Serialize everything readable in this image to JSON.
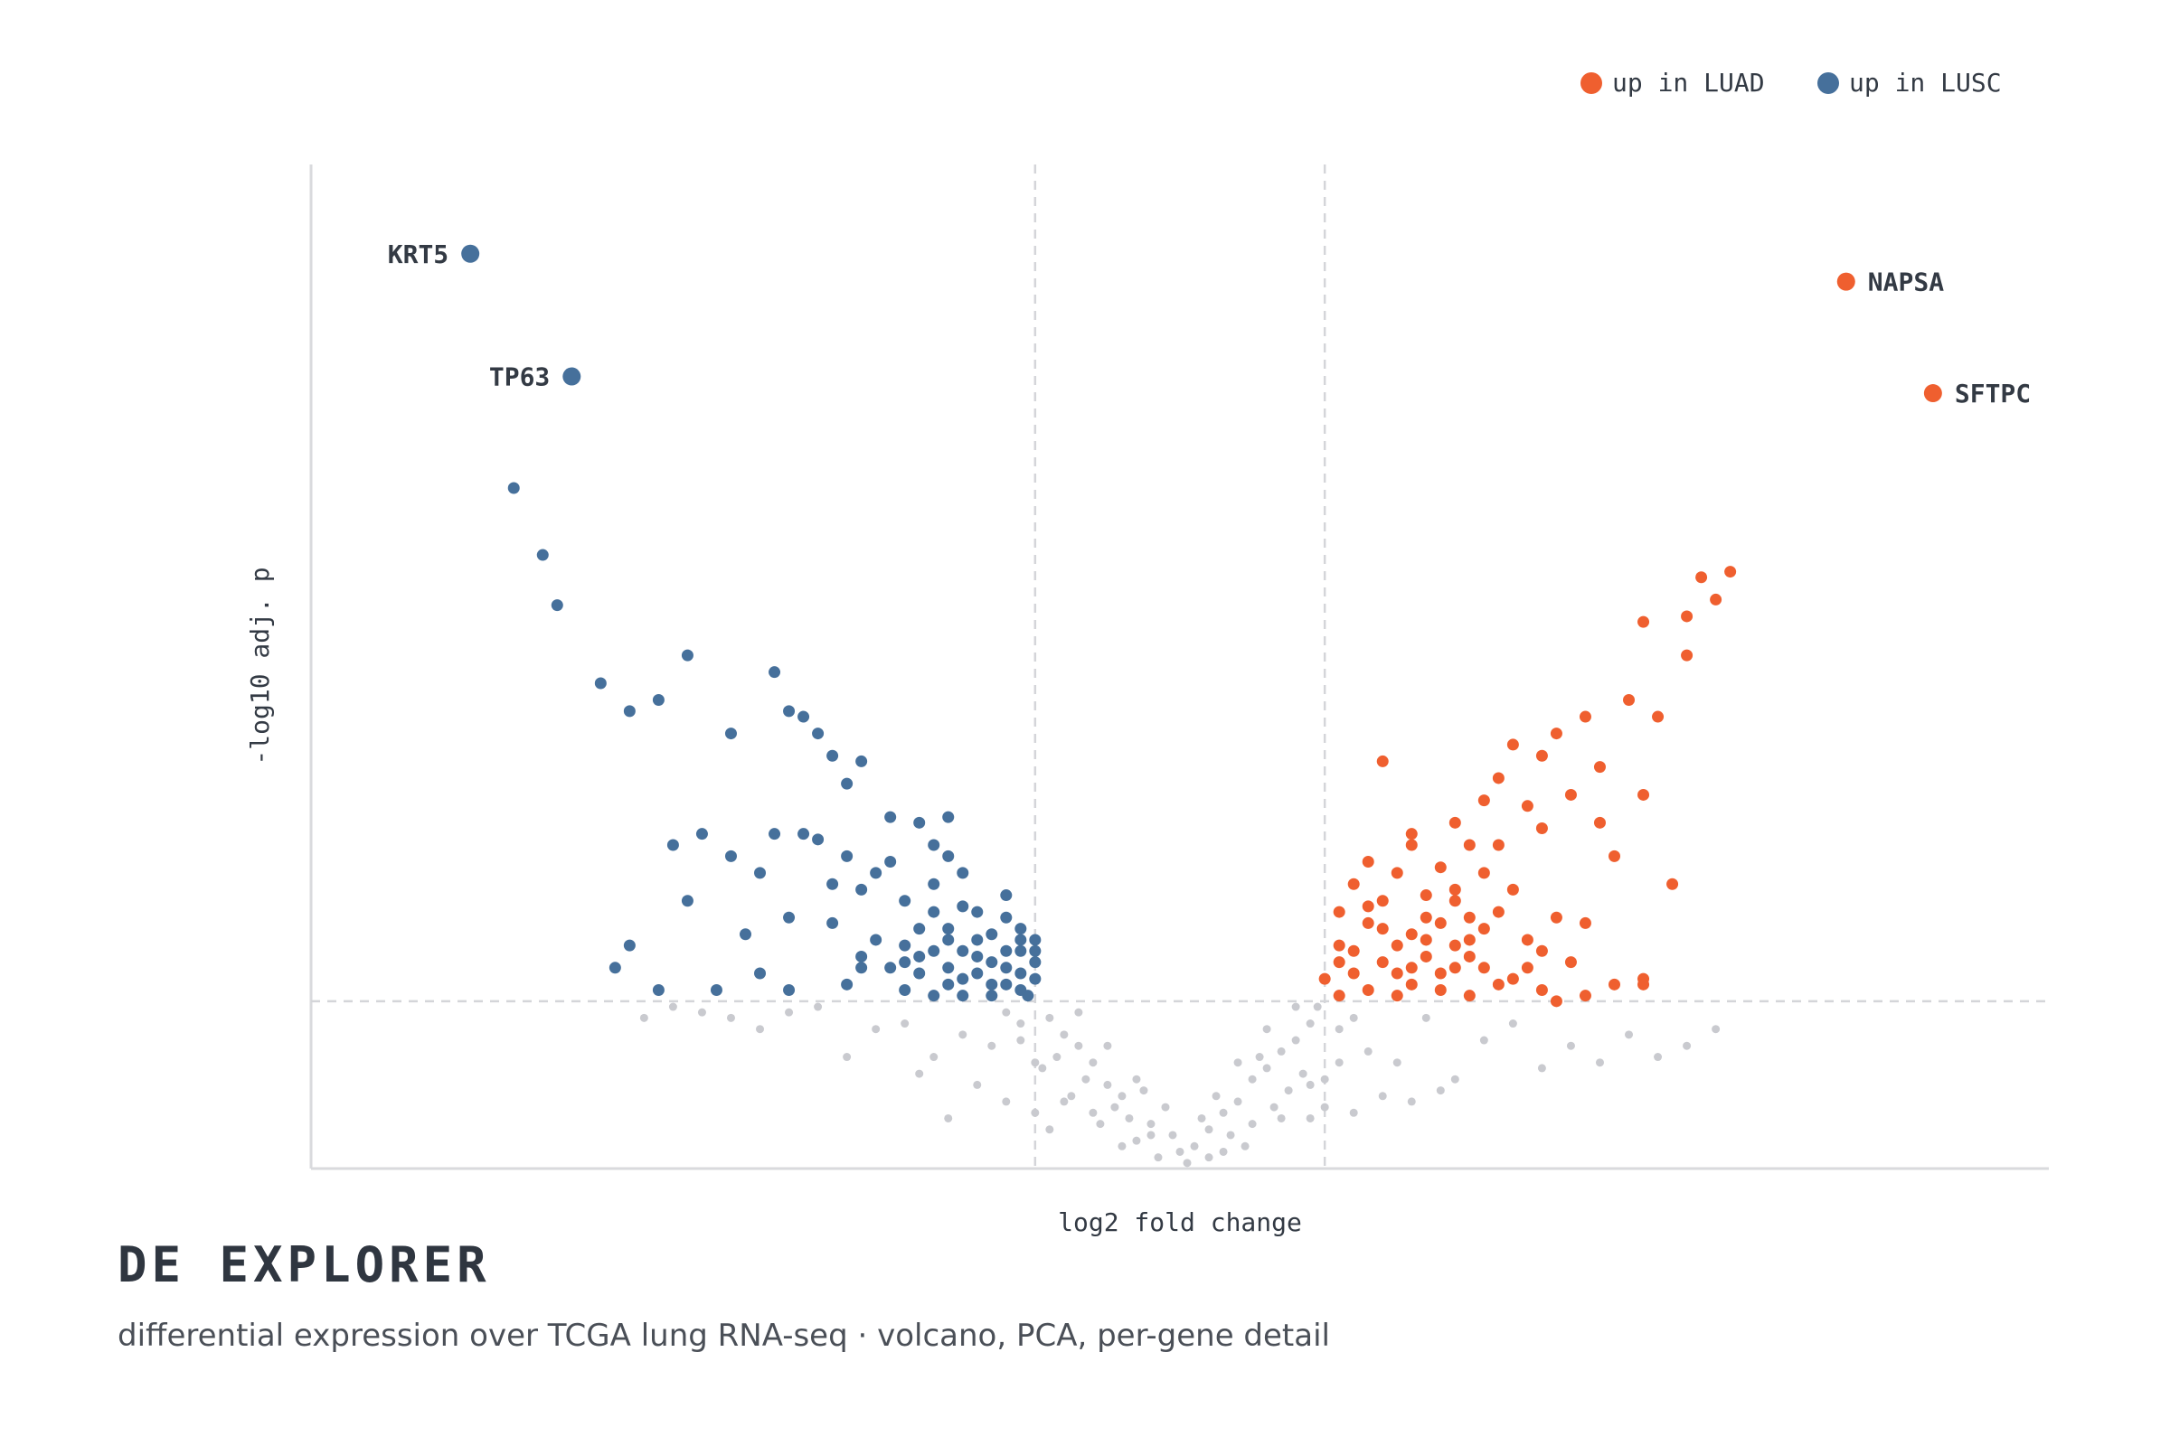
{
  "app": {
    "title": "DE EXPLORER",
    "subtitle": "differential expression over TCGA lung RNA-seq · volcano, PCA, per-gene detail"
  },
  "legend": [
    {
      "label": "up in LUAD",
      "color": "#ef5f2f",
      "placement": "top-right"
    },
    {
      "label": "up in LUSC",
      "color": "#46709b",
      "placement": "top-right"
    }
  ],
  "colors": {
    "up_luad": "#ef5f2f",
    "up_lusc": "#46709b",
    "not_significant": "#c9cacf",
    "threshold": "#d4d5d9",
    "axis": "#d9dadd"
  },
  "chart_data": {
    "type": "scatter",
    "subtype": "volcano",
    "xlabel": "log2 fold change",
    "ylabel": "-log10 adj. p",
    "xlim": [
      -6,
      6
    ],
    "ylim": [
      0,
      18
    ],
    "tick_labels_shown": false,
    "grid": false,
    "thresholds": {
      "log2fc": [
        -1,
        1
      ],
      "neg_log10_p": 3
    },
    "labeled_genes": [
      {
        "gene": "KRT5",
        "x": -4.9,
        "y": 16.4,
        "group": "up in LUSC"
      },
      {
        "gene": "TP63",
        "x": -4.2,
        "y": 14.2,
        "group": "up in LUSC"
      },
      {
        "gene": "NAPSA",
        "x": 4.6,
        "y": 15.9,
        "group": "up in LUAD"
      },
      {
        "gene": "SFTPC",
        "x": 5.2,
        "y": 13.9,
        "group": "up in LUAD"
      }
    ],
    "series": [
      {
        "name": "up in LUSC",
        "points": [
          [
            -4.6,
            12.2
          ],
          [
            -4.4,
            11.0
          ],
          [
            -4.3,
            10.1
          ],
          [
            -4.0,
            8.7
          ],
          [
            -3.8,
            8.2
          ],
          [
            -3.6,
            8.4
          ],
          [
            -3.4,
            9.2
          ],
          [
            -3.1,
            7.8
          ],
          [
            -2.8,
            8.9
          ],
          [
            -2.7,
            8.2
          ],
          [
            -2.5,
            7.8
          ],
          [
            -2.6,
            8.1
          ],
          [
            -2.4,
            7.4
          ],
          [
            -2.3,
            6.9
          ],
          [
            -2.2,
            7.3
          ],
          [
            -2.0,
            6.3
          ],
          [
            -1.8,
            6.2
          ],
          [
            -1.7,
            5.8
          ],
          [
            -1.6,
            6.3
          ],
          [
            -1.6,
            5.6
          ],
          [
            -3.5,
            5.8
          ],
          [
            -3.4,
            4.8
          ],
          [
            -3.0,
            4.2
          ],
          [
            -2.9,
            5.3
          ],
          [
            -2.8,
            6.0
          ],
          [
            -2.6,
            6.0
          ],
          [
            -2.5,
            5.9
          ],
          [
            -2.3,
            5.6
          ],
          [
            -2.2,
            5.0
          ],
          [
            -2.0,
            5.5
          ],
          [
            -1.9,
            4.8
          ],
          [
            -1.7,
            5.1
          ],
          [
            -1.6,
            4.3
          ],
          [
            -1.5,
            4.7
          ],
          [
            -1.4,
            4.6
          ],
          [
            -1.3,
            4.2
          ],
          [
            -1.2,
            4.5
          ],
          [
            -1.1,
            4.3
          ],
          [
            -1.0,
            4.1
          ],
          [
            -2.7,
            4.5
          ],
          [
            -2.4,
            4.4
          ],
          [
            -2.2,
            3.8
          ],
          [
            -2.1,
            4.1
          ],
          [
            -1.9,
            4.0
          ],
          [
            -1.8,
            3.5
          ],
          [
            -1.7,
            3.9
          ],
          [
            -1.6,
            3.6
          ],
          [
            -1.5,
            3.4
          ],
          [
            -1.4,
            3.8
          ],
          [
            -1.3,
            3.3
          ],
          [
            -1.2,
            3.9
          ],
          [
            -1.1,
            3.5
          ],
          [
            -1.05,
            3.1
          ],
          [
            -1.5,
            3.1
          ],
          [
            -1.7,
            3.1
          ],
          [
            -1.9,
            3.2
          ],
          [
            -2.0,
            3.6
          ],
          [
            -1.3,
            3.7
          ],
          [
            -1.1,
            3.9
          ],
          [
            -1.0,
            3.4
          ],
          [
            -3.8,
            4.0
          ],
          [
            -3.9,
            3.6
          ],
          [
            -3.6,
            3.2
          ],
          [
            -3.2,
            3.2
          ],
          [
            -2.9,
            3.5
          ],
          [
            -2.7,
            3.2
          ],
          [
            -2.3,
            3.3
          ],
          [
            -2.2,
            3.6
          ],
          [
            -3.3,
            6.0
          ],
          [
            -3.1,
            5.6
          ],
          [
            -1.6,
            4.1
          ],
          [
            -1.8,
            4.3
          ],
          [
            -1.4,
            4.1
          ],
          [
            -1.2,
            3.6
          ],
          [
            -1.0,
            3.7
          ],
          [
            -1.3,
            3.1
          ],
          [
            -1.5,
            3.9
          ],
          [
            -2.1,
            5.3
          ],
          [
            -2.4,
            5.1
          ],
          [
            -1.7,
            4.6
          ],
          [
            -1.5,
            5.3
          ],
          [
            -1.2,
            4.9
          ],
          [
            -1.1,
            3.2
          ],
          [
            -1.9,
            3.7
          ],
          [
            -1.6,
            3.3
          ],
          [
            -1.4,
            3.5
          ],
          [
            -1.8,
            3.8
          ],
          [
            -1.2,
            3.3
          ],
          [
            -1.0,
            3.9
          ],
          [
            -1.1,
            4.1
          ]
        ]
      },
      {
        "name": "up in LUAD",
        "points": [
          [
            3.8,
            10.7
          ],
          [
            3.7,
            10.2
          ],
          [
            3.6,
            10.6
          ],
          [
            3.5,
            9.9
          ],
          [
            3.5,
            9.2
          ],
          [
            3.2,
            9.8
          ],
          [
            3.1,
            8.4
          ],
          [
            3.3,
            8.1
          ],
          [
            2.8,
            8.1
          ],
          [
            2.9,
            7.2
          ],
          [
            2.7,
            6.7
          ],
          [
            2.3,
            7.6
          ],
          [
            2.6,
            7.8
          ],
          [
            2.5,
            7.4
          ],
          [
            2.4,
            6.5
          ],
          [
            2.2,
            7.0
          ],
          [
            2.1,
            6.6
          ],
          [
            2.5,
            6.1
          ],
          [
            3.0,
            5.6
          ],
          [
            3.2,
            6.7
          ],
          [
            1.4,
            7.3
          ],
          [
            1.6,
            5.8
          ],
          [
            1.8,
            5.4
          ],
          [
            2.0,
            5.8
          ],
          [
            2.1,
            5.3
          ],
          [
            1.9,
            5.0
          ],
          [
            1.5,
            5.3
          ],
          [
            1.4,
            4.8
          ],
          [
            1.7,
            4.5
          ],
          [
            1.2,
            5.1
          ],
          [
            1.1,
            4.6
          ],
          [
            1.3,
            4.4
          ],
          [
            1.6,
            4.2
          ],
          [
            1.8,
            4.4
          ],
          [
            1.9,
            4.8
          ],
          [
            2.0,
            4.1
          ],
          [
            2.2,
            4.6
          ],
          [
            2.3,
            5.0
          ],
          [
            2.4,
            4.1
          ],
          [
            2.6,
            4.5
          ],
          [
            1.1,
            4.0
          ],
          [
            1.2,
            3.9
          ],
          [
            1.4,
            3.7
          ],
          [
            1.5,
            4.0
          ],
          [
            1.7,
            3.8
          ],
          [
            1.8,
            3.5
          ],
          [
            2.0,
            3.8
          ],
          [
            2.1,
            3.6
          ],
          [
            2.3,
            3.4
          ],
          [
            2.5,
            3.9
          ],
          [
            1.0,
            3.4
          ],
          [
            1.1,
            3.1
          ],
          [
            1.3,
            3.2
          ],
          [
            1.5,
            3.1
          ],
          [
            1.6,
            3.3
          ],
          [
            1.8,
            3.2
          ],
          [
            2.0,
            3.1
          ],
          [
            2.2,
            3.3
          ],
          [
            2.5,
            3.2
          ],
          [
            2.6,
            3.0
          ],
          [
            1.3,
            5.5
          ],
          [
            1.6,
            6.0
          ],
          [
            1.9,
            6.2
          ],
          [
            2.2,
            5.8
          ],
          [
            1.7,
            4.9
          ],
          [
            1.4,
            4.3
          ],
          [
            1.2,
            3.5
          ],
          [
            1.9,
            3.6
          ],
          [
            2.8,
            3.1
          ],
          [
            3.2,
            3.4
          ],
          [
            3.0,
            3.3
          ],
          [
            2.7,
            3.7
          ],
          [
            2.8,
            4.4
          ],
          [
            3.2,
            3.3
          ],
          [
            2.1,
            4.3
          ],
          [
            1.9,
            4.0
          ],
          [
            1.5,
            3.5
          ],
          [
            1.1,
            3.7
          ],
          [
            2.9,
            6.2
          ],
          [
            3.4,
            5.1
          ],
          [
            1.3,
            4.7
          ],
          [
            1.7,
            4.1
          ],
          [
            2.0,
            4.5
          ],
          [
            2.4,
            3.6
          ],
          [
            1.6,
            3.6
          ]
        ]
      },
      {
        "name": "not significant",
        "points": [
          [
            -0.2,
            0.8
          ],
          [
            0.1,
            0.4
          ],
          [
            0.3,
            1.0
          ],
          [
            -0.4,
            1.3
          ],
          [
            0.5,
            1.6
          ],
          [
            -0.6,
            1.9
          ],
          [
            0.7,
            2.1
          ],
          [
            -0.8,
            2.4
          ],
          [
            0.9,
            2.6
          ],
          [
            -0.1,
            1.1
          ],
          [
            0.2,
            0.7
          ],
          [
            -0.3,
            0.5
          ],
          [
            0.4,
            1.2
          ],
          [
            -0.5,
            1.5
          ],
          [
            0.6,
            1.8
          ],
          [
            -0.7,
            2.2
          ],
          [
            0.8,
            2.3
          ],
          [
            -0.9,
            2.7
          ],
          [
            0.0,
            0.3
          ],
          [
            0.15,
            0.9
          ],
          [
            -0.25,
            1.4
          ],
          [
            0.35,
            0.6
          ],
          [
            -0.45,
            1.1
          ],
          [
            0.55,
            2.0
          ],
          [
            -0.65,
            1.6
          ],
          [
            0.75,
            1.4
          ],
          [
            -0.85,
            2.0
          ],
          [
            0.95,
            2.9
          ],
          [
            -0.05,
            0.6
          ],
          [
            0.25,
            1.3
          ],
          [
            -0.35,
            0.9
          ],
          [
            0.45,
            0.4
          ],
          [
            -0.55,
            0.8
          ],
          [
            0.65,
            1.1
          ],
          [
            -0.75,
            1.3
          ],
          [
            0.85,
            1.7
          ],
          [
            -0.95,
            1.8
          ],
          [
            1.1,
            2.5
          ],
          [
            -1.1,
            2.6
          ],
          [
            1.3,
            2.1
          ],
          [
            -1.3,
            2.2
          ],
          [
            1.5,
            1.9
          ],
          [
            -1.5,
            2.4
          ],
          [
            1.7,
            2.7
          ],
          [
            -1.7,
            2.0
          ],
          [
            1.9,
            1.6
          ],
          [
            -1.9,
            2.6
          ],
          [
            2.1,
            2.3
          ],
          [
            -2.1,
            2.5
          ],
          [
            2.3,
            2.6
          ],
          [
            -2.3,
            2.0
          ],
          [
            2.5,
            1.8
          ],
          [
            -2.5,
            2.9
          ],
          [
            2.7,
            2.2
          ],
          [
            -2.7,
            2.8
          ],
          [
            2.9,
            1.9
          ],
          [
            -2.9,
            2.5
          ],
          [
            3.1,
            2.4
          ],
          [
            -3.1,
            2.7
          ],
          [
            3.3,
            2.0
          ],
          [
            -3.3,
            2.8
          ],
          [
            -3.5,
            2.9
          ],
          [
            3.5,
            2.2
          ],
          [
            -3.7,
            2.7
          ],
          [
            3.7,
            2.5
          ],
          [
            -1.2,
            1.2
          ],
          [
            1.2,
            1.0
          ],
          [
            -1.4,
            1.5
          ],
          [
            1.4,
            1.3
          ],
          [
            -1.6,
            0.9
          ],
          [
            1.6,
            1.2
          ],
          [
            -1.8,
            1.7
          ],
          [
            1.8,
            1.4
          ],
          [
            -0.15,
            0.2
          ],
          [
            0.05,
            0.1
          ],
          [
            0.3,
            0.3
          ],
          [
            -0.4,
            0.4
          ],
          [
            0.5,
            0.8
          ],
          [
            -0.6,
            1.0
          ],
          [
            0.7,
            0.9
          ],
          [
            -0.8,
            1.2
          ],
          [
            0.9,
            1.5
          ],
          [
            -1.0,
            1.9
          ],
          [
            1.0,
            1.6
          ],
          [
            -1.1,
            2.3
          ],
          [
            1.1,
            1.9
          ],
          [
            -0.2,
            0.6
          ],
          [
            0.2,
            0.2
          ],
          [
            -0.3,
            1.6
          ],
          [
            0.4,
            1.9
          ],
          [
            -0.5,
            2.2
          ],
          [
            0.6,
            2.5
          ],
          [
            -0.7,
            2.8
          ],
          [
            0.8,
            2.9
          ],
          [
            -0.9,
            0.7
          ],
          [
            0.9,
            0.9
          ],
          [
            -1.0,
            1.0
          ],
          [
            1.0,
            1.1
          ],
          [
            -1.2,
            2.8
          ],
          [
            1.2,
            2.7
          ]
        ]
      }
    ]
  }
}
